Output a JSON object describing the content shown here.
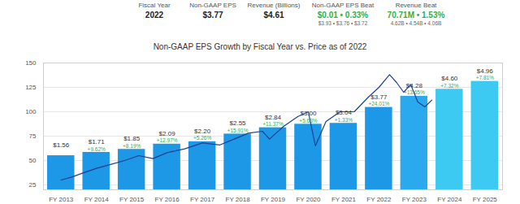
{
  "chart_data": {
    "type": "bar",
    "header": [
      {
        "label": "Fiscal Year",
        "value": "2022"
      },
      {
        "label": "Non-GAAP EPS",
        "value": "$3.77"
      },
      {
        "label": "Revenue (Billions)",
        "value": "$4.61"
      },
      {
        "label": "Non-GAAP EPS Beat",
        "value": "$0.01 • 0.33%",
        "detail": "$3.93 • $3.76 • $3.72",
        "color": "#2bb24c"
      },
      {
        "label": "Revenue Beat",
        "value": "70.71M • 1.53%",
        "detail": "4.62B • 4.54B • 4.06B",
        "color": "#2bb24c"
      }
    ],
    "title": "Non-GAAP EPS Growth by Fiscal Year vs. Price as of 2022",
    "xlim": [
      2012.5,
      2025.5
    ],
    "xticks": [
      {
        "value": 2013,
        "label": "FY 2013"
      },
      {
        "value": 2014,
        "label": "FY 2014"
      },
      {
        "value": 2015,
        "label": "FY 2015"
      },
      {
        "value": 2016,
        "label": "FY 2016"
      },
      {
        "value": 2017,
        "label": "FY 2017"
      },
      {
        "value": 2018,
        "label": "FY 2018"
      },
      {
        "value": 2019,
        "label": "FY 2019"
      },
      {
        "value": 2020,
        "label": "FY 2020"
      },
      {
        "value": 2021,
        "label": "FY 2021"
      },
      {
        "value": 2022,
        "label": "FY 2022"
      },
      {
        "value": 2023,
        "label": "FY 2023"
      },
      {
        "value": 2024,
        "label": "FY 2024"
      },
      {
        "value": 2025,
        "label": "FY 2025"
      }
    ],
    "ylim": [
      20,
      150
    ],
    "yticks": [
      25,
      50,
      75,
      100,
      125,
      150
    ],
    "y2lim": [
      0,
      5.8
    ],
    "y2ticks": [],
    "grid": true,
    "data_labels": true,
    "series": [
      {
        "type": "bar",
        "axis": "y2",
        "x": [
          2013,
          2014,
          2015,
          2016,
          2017,
          2018,
          2019,
          2020,
          2021,
          2022,
          2023,
          2024,
          2025
        ],
        "values": [
          1.56,
          1.71,
          1.85,
          2.09,
          2.2,
          2.55,
          2.84,
          3.0,
          3.04,
          3.77,
          4.28,
          4.6,
          4.96
        ],
        "value_labels": [
          "$1.56",
          "$1.71",
          "$1.85",
          "$2.09",
          "$2.20",
          "$2.55",
          "$2.84",
          "$3.00",
          "$3.04",
          "$3.77",
          "$4.28",
          "$4.60",
          "$4.96"
        ],
        "colors": [
          "#1c98e6",
          "#1c98e6",
          "#1c98e6",
          "#1c98e6",
          "#1c98e6",
          "#1c98e6",
          "#1c98e6",
          "#1c98e6",
          "#1c98e6",
          "#1c98e6",
          "#2aa9ee",
          "#3dcaf2",
          "#3dcaf2"
        ],
        "growth": [
          null,
          9.62,
          8.19,
          12.97,
          5.26,
          15.91,
          11.37,
          5.63,
          1.33,
          24.01,
          13.65,
          7.32,
          7.81
        ],
        "growth_labels": [
          null,
          "+9.62%",
          "+8.19%",
          "+12.97%",
          "+5.26%",
          "+15.91%",
          "+11.37%",
          "+5.63%",
          "+1.33%",
          "+24.01%",
          "+13.65%",
          "+7.32%",
          "+7.81%"
        ],
        "growth_color": "#2bb24c"
      },
      {
        "type": "line",
        "axis": "y",
        "color": "#1f3f8f",
        "x": [
          2013.0,
          2013.3,
          2013.6,
          2014.0,
          2014.4,
          2014.8,
          2015.2,
          2015.6,
          2016.0,
          2016.5,
          2017.0,
          2017.5,
          2017.9,
          2018.3,
          2018.7,
          2018.9,
          2019.3,
          2019.7,
          2020.0,
          2020.2,
          2020.5,
          2020.9,
          2021.3,
          2021.7,
          2022.0,
          2022.3,
          2022.5,
          2022.7,
          2022.9,
          2023.1,
          2023.3,
          2023.5
        ],
        "values": [
          30,
          33,
          37,
          42,
          46,
          50,
          55,
          52,
          58,
          62,
          68,
          66,
          72,
          78,
          80,
          72,
          85,
          95,
          100,
          65,
          90,
          100,
          100,
          115,
          125,
          138,
          130,
          120,
          128,
          110,
          105,
          112
        ]
      }
    ]
  }
}
